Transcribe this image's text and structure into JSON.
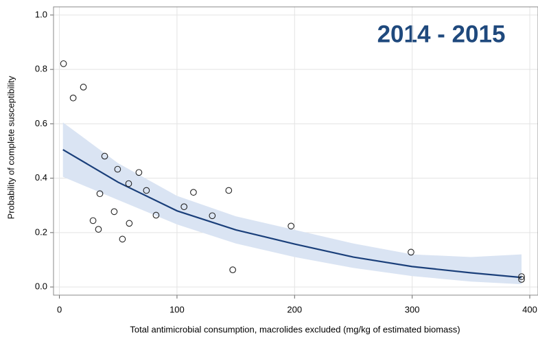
{
  "chart_data": {
    "type": "scatter",
    "annotation": "2014 - 2015",
    "x_label": "Total antimicrobial consumption, macrolides excluded (mg/kg of estimated biomass)",
    "y_label": "Probability of complete susceptibility",
    "x": [
      3.5,
      11.7,
      20.4,
      38.5,
      49.5,
      67.6,
      58.9,
      74,
      34.4,
      46.6,
      28.6,
      33.2,
      59.4,
      53.6,
      82.2,
      106,
      114,
      130,
      144,
      147.4,
      197,
      299,
      393,
      393
    ],
    "values": [
      0.821,
      0.695,
      0.735,
      0.481,
      0.433,
      0.421,
      0.38,
      0.355,
      0.343,
      0.277,
      0.244,
      0.212,
      0.234,
      0.176,
      0.264,
      0.295,
      0.348,
      0.262,
      0.355,
      0.063,
      0.224,
      0.128,
      0.038,
      0.028
    ],
    "fit": {
      "x": [
        3,
        50,
        100,
        150,
        200,
        250,
        300,
        350,
        393
      ],
      "values": [
        0.505,
        0.385,
        0.28,
        0.21,
        0.158,
        0.11,
        0.075,
        0.052,
        0.035
      ],
      "lower": [
        0.405,
        0.32,
        0.23,
        0.16,
        0.11,
        0.07,
        0.04,
        0.02,
        0.01
      ],
      "upper": [
        0.605,
        0.455,
        0.335,
        0.26,
        0.21,
        0.16,
        0.12,
        0.11,
        0.12
      ],
      "color": "#1a3f7a",
      "band_color": "#dae4f3"
    },
    "xlim": [
      -5,
      407
    ],
    "ylim": [
      -0.03,
      1.03
    ],
    "xticks": [
      0,
      100,
      200,
      300,
      400
    ],
    "yticks": [
      {
        "value": 0,
        "label": "0.0"
      },
      0.2,
      0.4,
      0.6,
      0.8,
      {
        "value": 1,
        "label": "1.0"
      }
    ],
    "grid": true
  }
}
